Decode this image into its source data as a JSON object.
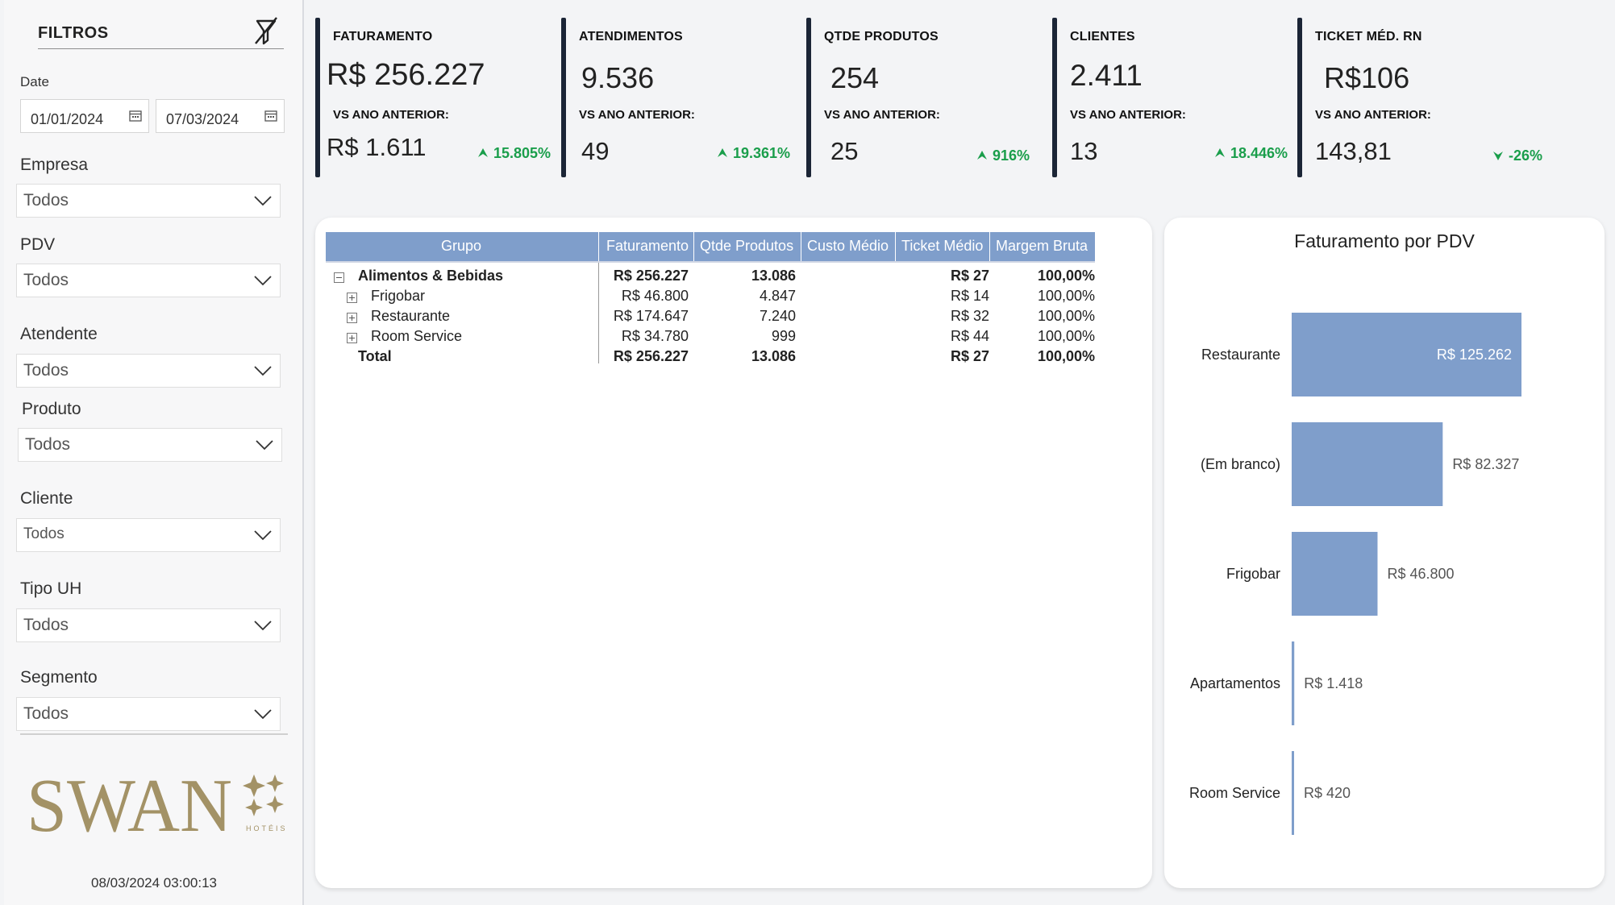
{
  "sidebar": {
    "title": "FILTROS",
    "date_label": "Date",
    "date_start": "01/01/2024",
    "date_end": "07/03/2024",
    "filters": [
      {
        "label": "Empresa",
        "value": "Todos"
      },
      {
        "label": "PDV",
        "value": "Todos"
      },
      {
        "label": "Atendente",
        "value": "Todos"
      },
      {
        "label": "Produto",
        "value": "Todos"
      },
      {
        "label": "Cliente",
        "value": "Todos"
      },
      {
        "label": "Tipo UH",
        "value": "Todos"
      },
      {
        "label": "Segmento",
        "value": "Todos"
      }
    ],
    "logo_text": "SWAN",
    "logo_sub": "HOTÉIS",
    "updated_at": "08/03/2024 03:00:13"
  },
  "kpis": [
    {
      "title": "FATURAMENTO",
      "value": "R$ 256.227",
      "vs_label": "VS ANO ANTERIOR:",
      "previous": "R$ 1.611",
      "change": "15.805%",
      "direction": "up"
    },
    {
      "title": "ATENDIMENTOS",
      "value": "9.536",
      "vs_label": "VS ANO ANTERIOR:",
      "previous": "49",
      "change": "19.361%",
      "direction": "up"
    },
    {
      "title": "QTDE PRODUTOS",
      "value": "254",
      "vs_label": "VS ANO ANTERIOR:",
      "previous": "25",
      "change": "916%",
      "direction": "up"
    },
    {
      "title": "CLIENTES",
      "value": "2.411",
      "vs_label": "VS ANO ANTERIOR:",
      "previous": "13",
      "change": "18.446%",
      "direction": "up"
    },
    {
      "title": "TICKET MÉD. RN",
      "value": "R$106",
      "vs_label": "VS ANO ANTERIOR:",
      "previous": "143,81",
      "change": "-26%",
      "direction": "down"
    }
  ],
  "matrix": {
    "headers": [
      "Grupo",
      "Faturamento",
      "Qtde Produtos",
      "Custo Médio",
      "Ticket Médio",
      "Margem Bruta"
    ],
    "rows": [
      {
        "label": "Alimentos & Bebidas",
        "faturamento": "R$ 256.227",
        "qtde": "13.086",
        "custo": "",
        "ticket": "R$ 27",
        "margem": "100,00%",
        "level": 0,
        "bold": true
      },
      {
        "label": "Frigobar",
        "faturamento": "R$ 46.800",
        "qtde": "4.847",
        "custo": "",
        "ticket": "R$ 14",
        "margem": "100,00%",
        "level": 1,
        "bold": false
      },
      {
        "label": "Restaurante",
        "faturamento": "R$ 174.647",
        "qtde": "7.240",
        "custo": "",
        "ticket": "R$ 32",
        "margem": "100,00%",
        "level": 1,
        "bold": false
      },
      {
        "label": "Room Service",
        "faturamento": "R$ 34.780",
        "qtde": "999",
        "custo": "",
        "ticket": "R$ 44",
        "margem": "100,00%",
        "level": 1,
        "bold": false
      },
      {
        "label": "Total",
        "faturamento": "R$ 256.227",
        "qtde": "13.086",
        "custo": "",
        "ticket": "R$ 27",
        "margem": "100,00%",
        "level": 0,
        "bold": true
      }
    ]
  },
  "chart_data": {
    "type": "bar",
    "orientation": "horizontal",
    "title": "Faturamento por PDV",
    "categories": [
      "Restaurante",
      "(Em branco)",
      "Frigobar",
      "Apartamentos",
      "Room Service"
    ],
    "values": [
      125262,
      82327,
      46800,
      1418,
      420
    ],
    "data_labels": [
      "R$ 125.262",
      "R$ 82.327",
      "R$ 46.800",
      "R$ 1.418",
      "R$ 420"
    ],
    "bar_color": "#7f9ecb"
  },
  "colors": {
    "accent": "#7f9ecb",
    "kpi_bar": "#1b2536",
    "positive": "#1a9e4b"
  }
}
